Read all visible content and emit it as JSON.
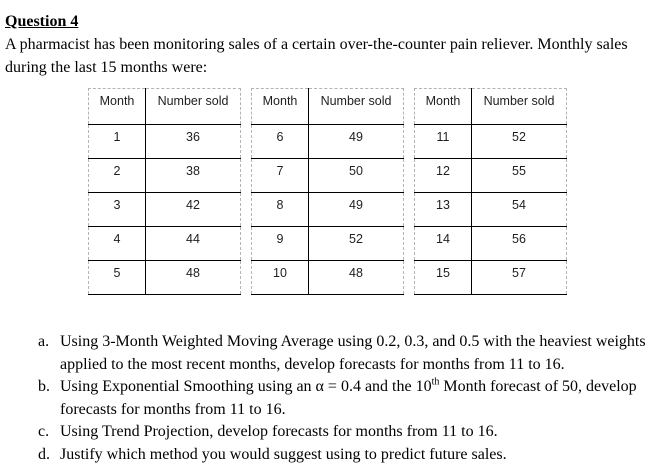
{
  "document": {
    "title": "Question 4",
    "intro": "A pharmacist has been monitoring sales of a certain over-the-counter pain reliever. Monthly sales during the last 15 months were:",
    "tables": [
      {
        "headers": [
          "Month",
          "Number sold"
        ],
        "rows": [
          [
            "1",
            "36"
          ],
          [
            "2",
            "38"
          ],
          [
            "3",
            "42"
          ],
          [
            "4",
            "44"
          ],
          [
            "5",
            "48"
          ]
        ]
      },
      {
        "headers": [
          "Month",
          "Number sold"
        ],
        "rows": [
          [
            "6",
            "49"
          ],
          [
            "7",
            "50"
          ],
          [
            "8",
            "49"
          ],
          [
            "9",
            "52"
          ],
          [
            "10",
            "48"
          ]
        ]
      },
      {
        "headers": [
          "Month",
          "Number sold"
        ],
        "rows": [
          [
            "11",
            "52"
          ],
          [
            "12",
            "55"
          ],
          [
            "13",
            "54"
          ],
          [
            "14",
            "56"
          ],
          [
            "15",
            "57"
          ]
        ]
      }
    ],
    "questions": [
      {
        "letter": "a.",
        "text": "Using 3-Month Weighted Moving Average using 0.2, 0.3, and 0.5 with the heaviest weights applied to the most recent months, develop forecasts for months from 11 to 16."
      },
      {
        "letter": "b.",
        "pre": "Using Exponential Smoothing using an α = 0.4 and the 10",
        "sup": "th",
        "post": " Month forecast of 50, develop forecasts for months from 11 to 16."
      },
      {
        "letter": "c.",
        "text": "Using Trend Projection, develop forecasts for months from 11 to 16."
      },
      {
        "letter": "d.",
        "text": "Justify which method you would suggest using to predict future sales."
      }
    ]
  }
}
